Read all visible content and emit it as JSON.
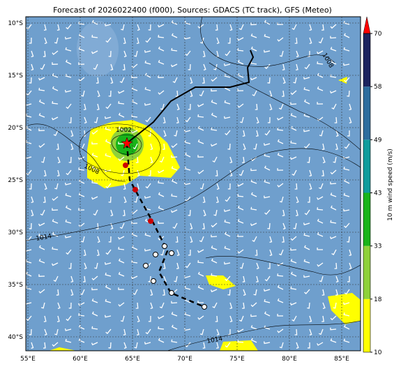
{
  "title": "Forecast of 2026022400 (f000), Sources: GDACS (TC track), GFS (Meteo)",
  "lat_labels": [
    "10°S",
    "15°S",
    "20°S",
    "25°S",
    "30°S",
    "35°S",
    "40°S"
  ],
  "lon_labels": [
    "55°E",
    "60°E",
    "65°E",
    "70°E",
    "75°E",
    "80°E",
    "85°E"
  ],
  "colorbar": {
    "label": "10 m wind speed (m/s)",
    "ticks": [
      10,
      18,
      33,
      43,
      49,
      58,
      70
    ]
  },
  "isobar_labels": [
    "1008",
    "1002",
    "1008",
    "1014",
    "1014"
  ]
}
